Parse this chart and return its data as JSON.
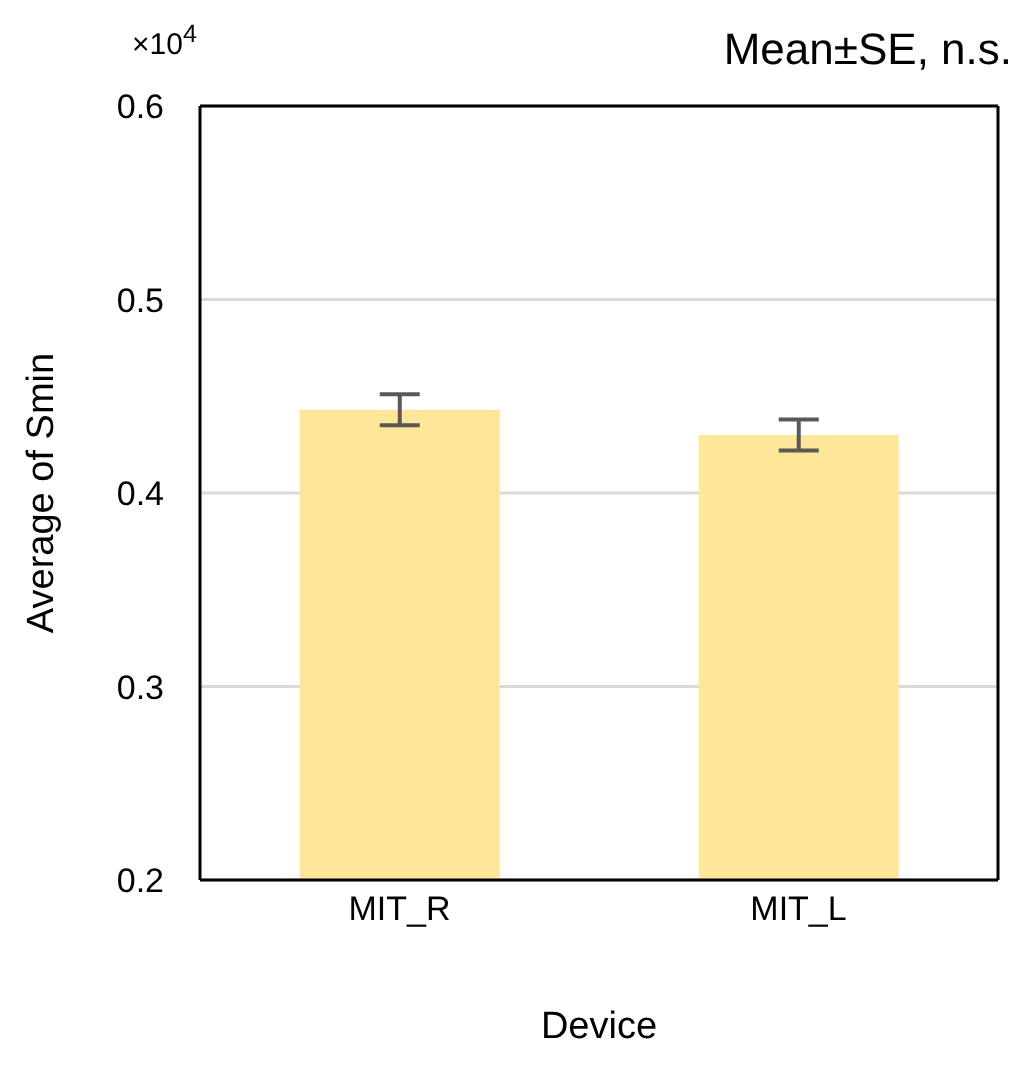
{
  "chart_data": {
    "type": "bar",
    "title": "Mean±SE, n.s.",
    "xlabel": "Device",
    "ylabel": "Average of Smin",
    "annotations": [
      "×10$^{4}$"
    ],
    "categories": [
      "MIT_R",
      "MIT_L"
    ],
    "series": [
      {
        "color": "#ffe699",
        "values": [
          0.443,
          0.43
        ],
        "errors": [
          0.008,
          0.008
        ]
      }
    ],
    "ylim": [
      0.2,
      0.6
    ],
    "yticks": [
      0.2,
      0.3,
      0.4,
      0.5,
      0.6
    ],
    "grid": "y",
    "legend": false
  }
}
